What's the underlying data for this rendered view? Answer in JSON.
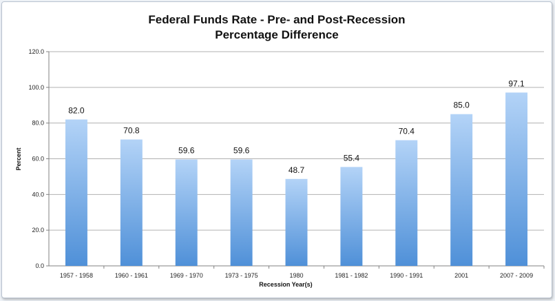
{
  "chart_data": {
    "type": "bar",
    "title": "Federal Funds Rate - Pre- and Post-Recession",
    "subtitle": "Percentage Difference",
    "xlabel": "Recession Year(s)",
    "ylabel": "Percent",
    "categories": [
      "1957 - 1958",
      "1960 - 1961",
      "1969 - 1970",
      "1973 - 1975",
      "1980",
      "1981 - 1982",
      "1990 - 1991",
      "2001",
      "2007 - 2009"
    ],
    "values": [
      82.0,
      70.8,
      59.6,
      59.6,
      48.7,
      55.4,
      70.4,
      85.0,
      97.1
    ],
    "value_labels": [
      "82.0",
      "70.8",
      "59.6",
      "59.6",
      "48.7",
      "55.4",
      "70.4",
      "85.0",
      "97.1"
    ],
    "ylim": [
      0,
      120
    ],
    "y_ticks": [
      "0.0",
      "20.0",
      "40.0",
      "60.0",
      "80.0",
      "100.0",
      "120.0"
    ],
    "grid": true,
    "legend": "none",
    "colors": {
      "bar_top": "#b3d3f7",
      "bar_bottom": "#4f90d8",
      "grid": "#b0b0b0"
    }
  }
}
